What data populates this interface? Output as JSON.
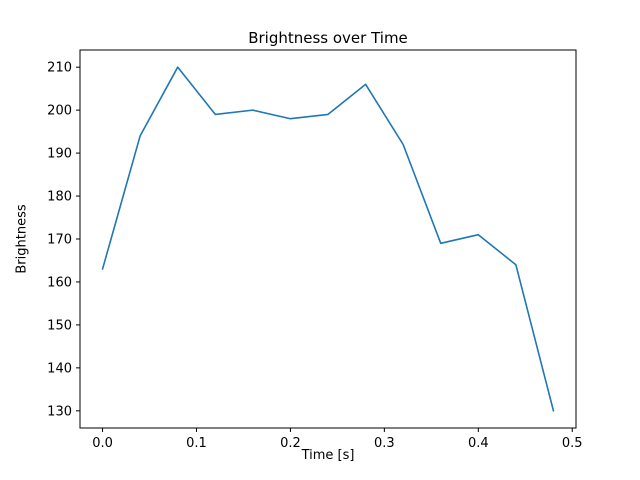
{
  "chart_data": {
    "type": "line",
    "title": "Brightness over Time",
    "xlabel": "Time [s]",
    "ylabel": "Brightness",
    "x": [
      0.0,
      0.04,
      0.08,
      0.12,
      0.16,
      0.2,
      0.24,
      0.28,
      0.32,
      0.36,
      0.4,
      0.44,
      0.48
    ],
    "y": [
      163,
      194,
      210,
      199,
      200,
      198,
      199,
      206,
      192,
      169,
      171,
      164,
      130
    ],
    "xlim": [
      -0.024,
      0.504
    ],
    "ylim": [
      126,
      214
    ],
    "xticks": [
      0.0,
      0.1,
      0.2,
      0.3,
      0.4,
      0.5
    ],
    "xtick_labels": [
      "0.0",
      "0.1",
      "0.2",
      "0.3",
      "0.4",
      "0.5"
    ],
    "yticks": [
      130,
      140,
      150,
      160,
      170,
      180,
      190,
      200,
      210
    ],
    "ytick_labels": [
      "130",
      "140",
      "150",
      "160",
      "170",
      "180",
      "190",
      "200",
      "210"
    ],
    "line_color": "#1f77b4",
    "axis_color": "#000000",
    "grid": false,
    "legend_position": "none"
  }
}
